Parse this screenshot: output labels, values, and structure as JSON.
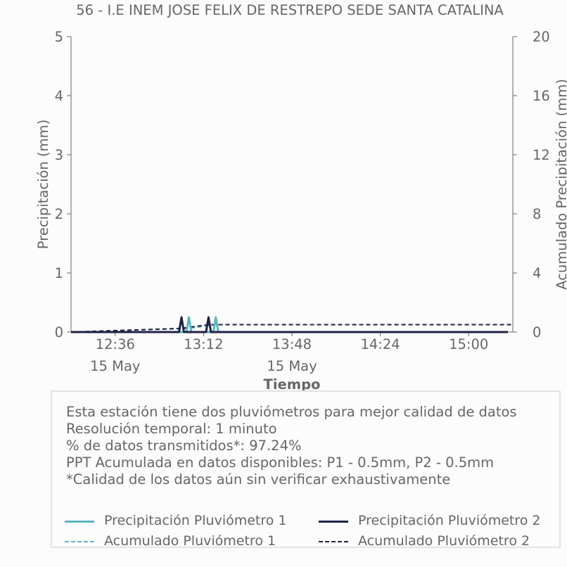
{
  "chart_data": {
    "type": "line",
    "title": "56 - I.E INEM JOSE FELIX DE RESTREPO SEDE SANTA CATALINA",
    "xlabel": "Tiempo",
    "ylabel": "Precipitación (mm)",
    "y2label": "Acumulado Precipitación (mm)",
    "xlim": [
      "12:18",
      "15:18"
    ],
    "ylim": [
      0,
      5
    ],
    "y2lim": [
      0,
      20
    ],
    "x_ticks": [
      "12:36",
      "13:12",
      "13:48",
      "14:24",
      "15:00"
    ],
    "x_tick_dates": [
      "15 May",
      "",
      "15 May",
      "",
      ""
    ],
    "y_ticks": [
      "0",
      "1",
      "2",
      "3",
      "4",
      "5"
    ],
    "y2_ticks": [
      "0",
      "4",
      "8",
      "12",
      "16",
      "20"
    ],
    "grid": false,
    "series": [
      {
        "name": "Precipitación Pluviómetro 1",
        "axis": "left",
        "style": "solid",
        "color": "#5bb5c0",
        "x": [
          "12:18",
          "13:05",
          "13:06",
          "13:07",
          "13:16",
          "13:17",
          "13:18",
          "15:16"
        ],
        "y": [
          0,
          0,
          0.25,
          0,
          0,
          0.25,
          0,
          0
        ]
      },
      {
        "name": "Precipitación Pluviómetro 2",
        "axis": "left",
        "style": "solid",
        "color": "#1f2244",
        "x": [
          "12:18",
          "13:02",
          "13:03",
          "13:04",
          "13:13",
          "13:14",
          "13:15",
          "15:16"
        ],
        "y": [
          0,
          0,
          0.25,
          0,
          0,
          0.25,
          0,
          0
        ]
      },
      {
        "name": "Acumulado Pluviómetro 1",
        "axis": "right",
        "style": "dashed",
        "color": "#5bb5c0",
        "x": [
          "12:18",
          "13:06",
          "13:17",
          "15:18"
        ],
        "y": [
          0,
          0.25,
          0.5,
          0.5
        ]
      },
      {
        "name": "Acumulado Pluviómetro 2",
        "axis": "right",
        "style": "dashed",
        "color": "#1f2244",
        "x": [
          "12:18",
          "13:03",
          "13:14",
          "15:18"
        ],
        "y": [
          0,
          0.25,
          0.5,
          0.5
        ]
      }
    ]
  },
  "info": {
    "line1": "Esta estación tiene dos pluviómetros para mejor calidad de datos",
    "line2": "Resolución temporal: 1 minuto",
    "line3": "% de datos transmitidos*: 97.24%",
    "line4": "PPT Acumulada en datos disponibles: P1 - 0.5mm, P2 - 0.5mm",
    "line5": "*Calidad de los datos aún sin verificar exhaustivamente"
  },
  "legend": [
    {
      "label": "Precipitación Pluviómetro 1",
      "color": "#5bb5c0",
      "style": "solid"
    },
    {
      "label": "Precipitación Pluviómetro 2",
      "color": "#1f2244",
      "style": "solid"
    },
    {
      "label": "Acumulado Pluviómetro 1",
      "color": "#5bb5c0",
      "style": "dashed"
    },
    {
      "label": "Acumulado Pluviómetro 2",
      "color": "#1f2244",
      "style": "dashed"
    }
  ]
}
